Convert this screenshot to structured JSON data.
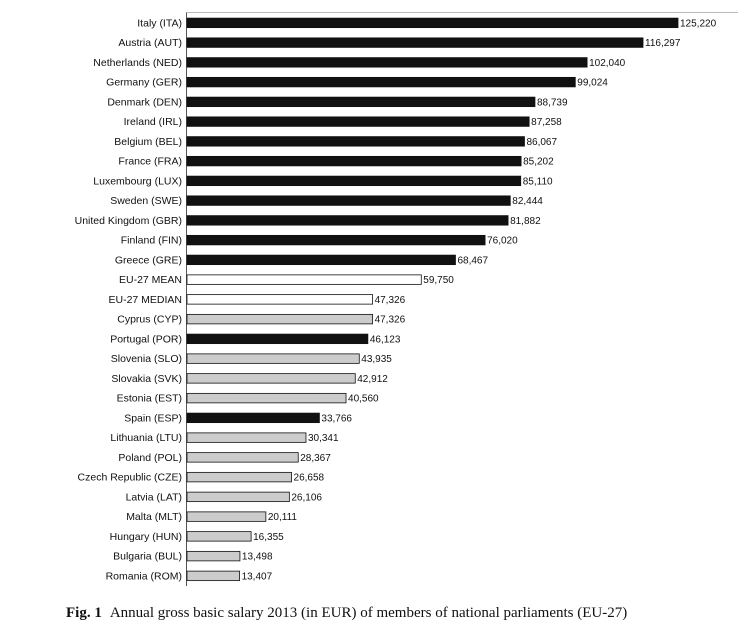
{
  "chart_data": {
    "type": "bar",
    "orientation": "horizontal",
    "categories": [
      "Italy (ITA)",
      "Austria (AUT)",
      "Netherlands (NED)",
      "Germany (GER)",
      "Denmark (DEN)",
      "Ireland (IRL)",
      "Belgium (BEL)",
      "France (FRA)",
      "Luxembourg (LUX)",
      "Sweden (SWE)",
      "United Kingdom (GBR)",
      "Finland (FIN)",
      "Greece (GRE)",
      "EU-27 MEAN",
      "EU-27 MEDIAN",
      "Cyprus (CYP)",
      "Portugal (POR)",
      "Slovenia (SLO)",
      "Slovakia (SVK)",
      "Estonia (EST)",
      "Spain (ESP)",
      "Lithuania (LTU)",
      "Poland (POL)",
      "Czech Republic (CZE)",
      "Latvia (LAT)",
      "Malta (MLT)",
      "Hungary (HUN)",
      "Bulgaria (BUL)",
      "Romania (ROM)"
    ],
    "values": [
      125220,
      116297,
      102040,
      99024,
      88739,
      87258,
      86067,
      85202,
      85110,
      82444,
      81882,
      76020,
      68467,
      59750,
      47326,
      47326,
      46123,
      43935,
      42912,
      40560,
      33766,
      30341,
      28367,
      26658,
      26106,
      20111,
      16355,
      13498,
      13407
    ],
    "value_labels": [
      "125,220",
      "116,297",
      "102,040",
      "99,024",
      "88,739",
      "87,258",
      "86,067",
      "85,202",
      "85,110",
      "82,444",
      "81,882",
      "76,020",
      "68,467",
      "59,750",
      "47,326",
      "47,326",
      "46,123",
      "43,935",
      "42,912",
      "40,560",
      "33,766",
      "30,341",
      "28,367",
      "26,658",
      "26,106",
      "20,111",
      "16,355",
      "13,498",
      "13,407"
    ],
    "bar_group": [
      "old",
      "old",
      "old",
      "old",
      "old",
      "old",
      "old",
      "old",
      "old",
      "old",
      "old",
      "old",
      "old",
      "aggregate",
      "aggregate",
      "new",
      "old",
      "new",
      "new",
      "new",
      "old",
      "new",
      "new",
      "new",
      "new",
      "new",
      "new",
      "new",
      "new"
    ],
    "group_colors": {
      "old": "#111111",
      "new": "#cccccc",
      "aggregate": "#ffffff"
    },
    "xlim": [
      0,
      135000
    ],
    "title": "",
    "xlabel": "",
    "ylabel": ""
  },
  "caption": {
    "label": "Fig. 1",
    "text": "Annual gross basic salary 2013 (in EUR) of members of national parliaments (EU-27)"
  }
}
